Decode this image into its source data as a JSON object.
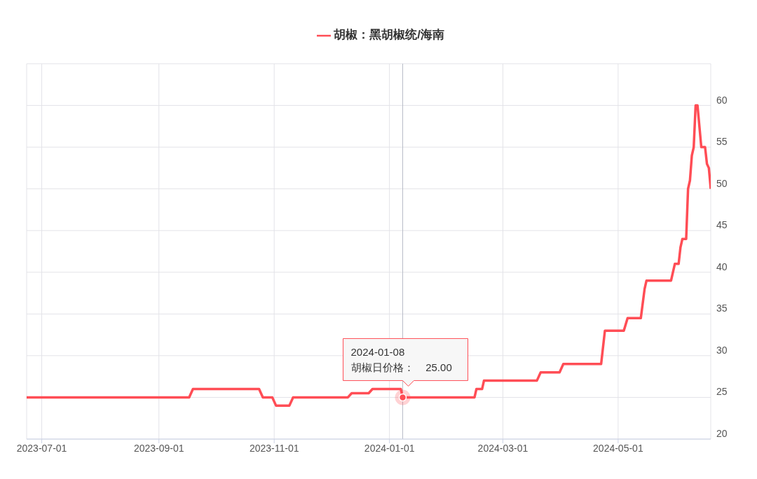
{
  "chart_data": {
    "type": "line",
    "legend": "top",
    "grid": true,
    "marker": "none",
    "line_style": "solid",
    "xlim": [
      "2023-06-23",
      "2024-06-19"
    ],
    "xticks": [
      {
        "value": "2023-07-01",
        "label": "2023-07-01"
      },
      {
        "value": "2023-09-01",
        "label": "2023-09-01"
      },
      {
        "value": "2023-11-01",
        "label": "2023-11-01"
      },
      {
        "value": "2024-01-01",
        "label": "2024-01-01"
      },
      {
        "value": "2024-03-01",
        "label": "2024-03-01"
      },
      {
        "value": "2024-05-01",
        "label": "2024-05-01"
      }
    ],
    "ylim": [
      20,
      65
    ],
    "yticks": [
      20,
      25,
      30,
      35,
      40,
      45,
      50,
      55,
      60,
      {
        "value": 65,
        "label": null
      }
    ],
    "ref_lines": [
      {
        "axis": "x",
        "value": "2024-01-08",
        "label": null,
        "color": "#b8bcc8"
      }
    ],
    "annotations": [
      {
        "text": "2024-01-08\n胡椒日价格：    25.00",
        "x": "2024-01-08",
        "y": 25
      }
    ],
    "series": [
      {
        "name": "胡椒：黑胡椒统/海南",
        "color": "#ff4d55",
        "x": [
          "2023-06-23",
          "2023-09-17",
          "2023-09-19",
          "2023-10-24",
          "2023-10-26",
          "2023-10-31",
          "2023-11-02",
          "2023-11-09",
          "2023-11-11",
          "2023-12-10",
          "2023-12-12",
          "2023-12-21",
          "2023-12-23",
          "2024-01-07",
          "2024-01-08",
          "2024-02-15",
          "2024-02-16",
          "2024-02-19",
          "2024-02-20",
          "2024-03-19",
          "2024-03-21",
          "2024-03-31",
          "2024-04-02",
          "2024-04-22",
          "2024-04-24",
          "2024-05-04",
          "2024-05-06",
          "2024-05-13",
          "2024-05-15",
          "2024-05-16",
          "2024-05-29",
          "2024-05-31",
          "2024-06-02",
          "2024-06-03",
          "2024-06-04",
          "2024-06-06",
          "2024-06-07",
          "2024-06-08",
          "2024-06-09",
          "2024-06-10",
          "2024-06-11",
          "2024-06-12",
          "2024-06-14",
          "2024-06-16",
          "2024-06-17",
          "2024-06-18",
          "2024-06-19"
        ],
        "values": [
          25,
          25,
          26,
          26,
          25,
          25,
          24,
          24,
          25,
          25,
          25.5,
          25.5,
          26,
          26,
          25,
          25,
          26,
          26,
          27,
          27,
          28,
          28,
          29,
          29,
          33,
          33,
          34.5,
          34.5,
          38,
          39,
          39,
          41,
          41,
          43,
          44,
          44,
          50,
          51,
          54,
          55,
          60,
          60,
          55,
          55,
          53,
          52.5,
          50
        ]
      }
    ]
  }
}
